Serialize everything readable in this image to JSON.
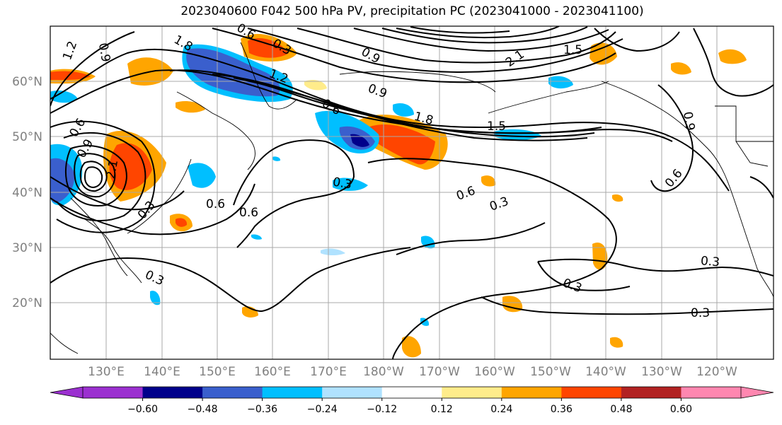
{
  "title": "2023040600 F042 500 hPa PV, precipitation PC (2023041000 - 2023041100)",
  "lat_labels": [
    "60°N",
    "50°N",
    "40°N",
    "30°N",
    "20°N"
  ],
  "lon_labels": [
    "130°E",
    "140°E",
    "150°E",
    "160°E",
    "170°E",
    "180°W",
    "170°W",
    "160°W",
    "150°W",
    "140°W",
    "130°W",
    "120°W"
  ],
  "colorbar": {
    "tick_labels": [
      "−0.60",
      "−0.48",
      "−0.36",
      "−0.24",
      "−0.12",
      "0.12",
      "0.24",
      "0.36",
      "0.48",
      "0.60"
    ],
    "colors": [
      "#9b30d0",
      "#00008b",
      "#3a5fcd",
      "#00bfff",
      "#b0e2ff",
      "#ffffff",
      "#ffec8b",
      "#ffa500",
      "#ff4500",
      "#b22222",
      "#ff87b0"
    ]
  },
  "contour_labels": [
    "1.2",
    "0.9",
    "1.8",
    "0.6",
    "0.3",
    "0.9",
    "1.5",
    "2.1",
    "1.8",
    "1.5",
    "0.6",
    "0.9",
    "1.2",
    "2.1",
    "0.9",
    "0.6",
    "0.3",
    "0.6",
    "0.6",
    "0.3",
    "0.6",
    "0.3",
    "0.3",
    "0.3",
    "0.3",
    "0.6",
    "0.9",
    "0.3"
  ]
}
